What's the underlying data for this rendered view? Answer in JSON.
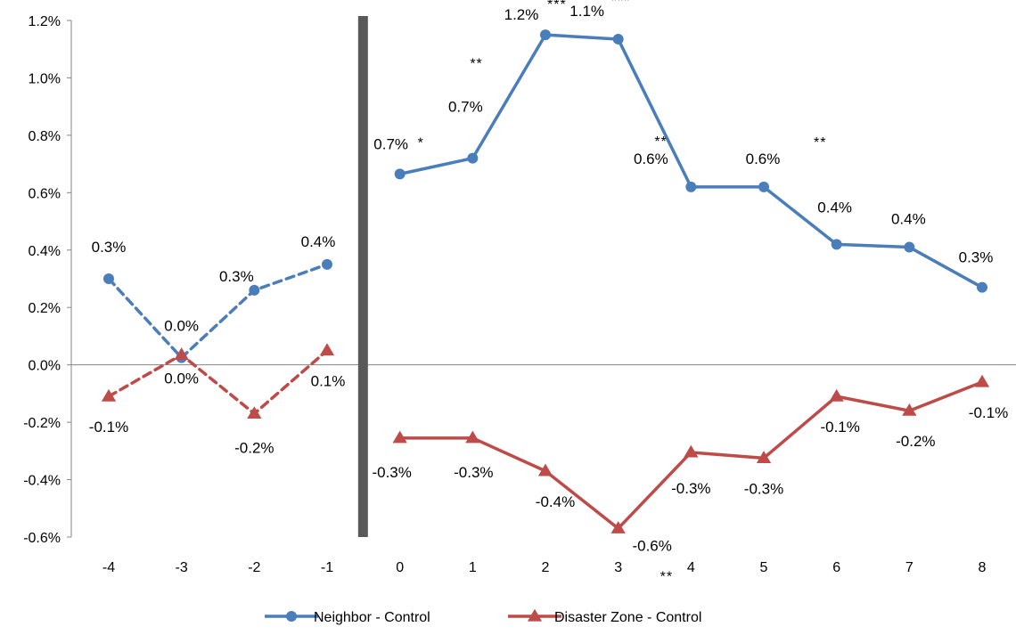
{
  "chart_data": {
    "type": "line",
    "title": "",
    "xlabel": "",
    "ylabel": "",
    "x": [
      -4,
      -3,
      -2,
      -1,
      0,
      1,
      2,
      3,
      4,
      5,
      6,
      7,
      8
    ],
    "x_tick_labels": [
      "-4",
      "-3",
      "-2",
      "-1",
      "0",
      "1",
      "2",
      "3",
      "4",
      "5",
      "6",
      "7",
      "8"
    ],
    "ylim": [
      -0.6,
      1.2
    ],
    "y_tick_labels": [
      "-0.6%",
      "-0.4%",
      "-0.2%",
      "0.0%",
      "0.2%",
      "0.4%",
      "0.6%",
      "0.8%",
      "1.0%",
      "1.2%"
    ],
    "y_ticks": [
      -0.6,
      -0.4,
      -0.2,
      0.0,
      0.2,
      0.4,
      0.6,
      0.8,
      1.0,
      1.2
    ],
    "grid": false,
    "legend_position": "bottom",
    "event_marker": "vertical bar between -1 and 0",
    "series": [
      {
        "name": "Neighbor - Control",
        "color": "#4a7ebb",
        "marker": "circle",
        "pre_period": {
          "x": [
            -4,
            -3,
            -2,
            -1
          ],
          "values": [
            0.3,
            0.025,
            0.26,
            0.35
          ],
          "labels": [
            "0.3%",
            "0.0%",
            "0.3%",
            "0.4%"
          ],
          "stars": [
            "",
            "",
            "",
            ""
          ],
          "line_style": "dashed"
        },
        "post_period": {
          "x": [
            0,
            1,
            2,
            3,
            4,
            5,
            6,
            7,
            8
          ],
          "values": [
            0.665,
            0.72,
            1.15,
            1.135,
            0.62,
            0.62,
            0.42,
            0.41,
            0.27
          ],
          "labels": [
            "0.7%",
            "0.7%",
            "1.2%",
            "1.1%",
            "0.6%",
            "0.6%",
            "0.4%",
            "0.4%",
            "0.3%"
          ],
          "stars": [
            "*",
            "**",
            "***",
            "***",
            "**",
            "**",
            "",
            "",
            ""
          ],
          "line_style": "solid"
        }
      },
      {
        "name": "Disaster Zone - Control",
        "color": "#be4b48",
        "marker": "triangle",
        "pre_period": {
          "x": [
            -4,
            -3,
            -2,
            -1
          ],
          "values": [
            -0.11,
            0.035,
            -0.17,
            0.05
          ],
          "labels": [
            "-0.1%",
            "0.0%",
            "-0.2%",
            "0.1%"
          ],
          "stars": [
            "",
            "",
            "",
            ""
          ],
          "line_style": "dashed"
        },
        "post_period": {
          "x": [
            0,
            1,
            2,
            3,
            4,
            5,
            6,
            7,
            8
          ],
          "values": [
            -0.255,
            -0.255,
            -0.37,
            -0.57,
            -0.305,
            -0.325,
            -0.11,
            -0.16,
            -0.06
          ],
          "labels": [
            "-0.3%",
            "-0.3%",
            "-0.4%",
            "-0.6%",
            "-0.3%",
            "-0.3%",
            "-0.1%",
            "-0.2%",
            "-0.1%"
          ],
          "stars": [
            "",
            "",
            "",
            "**",
            "",
            "",
            "",
            "",
            ""
          ],
          "line_style": "solid"
        }
      }
    ]
  }
}
